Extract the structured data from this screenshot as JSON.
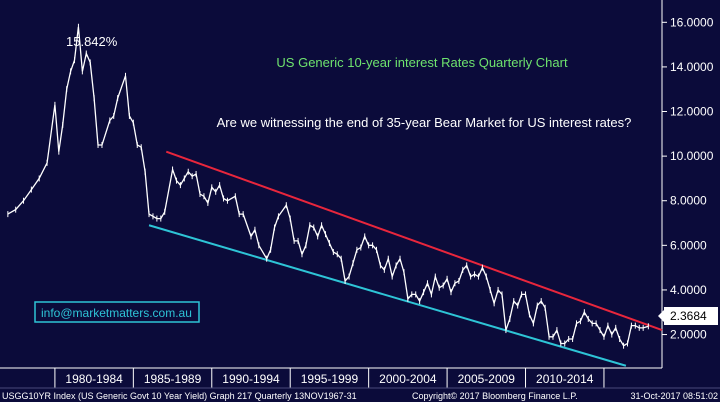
{
  "colors": {
    "background": "#0b0b3a",
    "price_line": "#ffffff",
    "upper_trendline": "#e8263c",
    "lower_trendline": "#2ec4d6",
    "title_text": "#6ee36e",
    "email_box_border": "#2ec4d6",
    "email_text": "#2ec4d6",
    "axis_band": "#0b0b3a",
    "last_value_box": "#ffffff",
    "last_value_text": "#000000"
  },
  "chart_data": {
    "type": "line",
    "title": "US Generic 10-year interest Rates Quarterly Chart",
    "subtitle": "Are we witnessing the end of 35-year Bear Market for US interest rates?",
    "peak_label": "15.842%",
    "email_label": "info@marketmatters.com.au",
    "last_value_label": "2.3684",
    "y_ticks": [
      "16.0000",
      "14.0000",
      "12.0000",
      "10.0000",
      "8.0000",
      "6.0000",
      "4.0000",
      "2.0000"
    ],
    "y_tick_values": [
      16,
      14,
      12,
      10,
      8,
      6,
      4,
      2
    ],
    "x_tick_labels": [
      "1980-1984",
      "1985-1989",
      "1990-1994",
      "1995-1999",
      "2000-2004",
      "2005-2009",
      "2010-2014"
    ],
    "ylim": [
      0.5,
      17.0
    ],
    "xlim": [
      1976.5,
      2018.7
    ],
    "grid": false,
    "series": [
      {
        "values": [
          [
            1977.0,
            7.4
          ],
          [
            1977.5,
            7.6
          ],
          [
            1978.0,
            8.0
          ],
          [
            1978.5,
            8.5
          ],
          [
            1979.0,
            9.0
          ],
          [
            1979.5,
            9.7
          ],
          [
            1980.0,
            12.3
          ],
          [
            1980.25,
            10.2
          ],
          [
            1980.5,
            11.4
          ],
          [
            1980.75,
            13.0
          ],
          [
            1981.0,
            13.8
          ],
          [
            1981.25,
            14.3
          ],
          [
            1981.5,
            15.8
          ],
          [
            1981.75,
            13.8
          ],
          [
            1982.0,
            14.6
          ],
          [
            1982.25,
            14.2
          ],
          [
            1982.5,
            12.6
          ],
          [
            1982.75,
            10.5
          ],
          [
            1983.0,
            10.5
          ],
          [
            1983.5,
            11.6
          ],
          [
            1983.75,
            11.8
          ],
          [
            1984.0,
            12.6
          ],
          [
            1984.5,
            13.6
          ],
          [
            1984.75,
            11.8
          ],
          [
            1985.0,
            11.5
          ],
          [
            1985.25,
            10.5
          ],
          [
            1985.5,
            10.4
          ],
          [
            1985.75,
            9.3
          ],
          [
            1986.0,
            7.4
          ],
          [
            1986.25,
            7.3
          ],
          [
            1986.5,
            7.2
          ],
          [
            1986.75,
            7.2
          ],
          [
            1987.0,
            7.5
          ],
          [
            1987.5,
            9.4
          ],
          [
            1987.75,
            8.9
          ],
          [
            1988.0,
            8.7
          ],
          [
            1988.25,
            9.0
          ],
          [
            1988.5,
            9.3
          ],
          [
            1988.75,
            9.1
          ],
          [
            1989.0,
            9.2
          ],
          [
            1989.25,
            8.3
          ],
          [
            1989.5,
            8.2
          ],
          [
            1989.75,
            7.9
          ],
          [
            1990.0,
            8.6
          ],
          [
            1990.25,
            8.4
          ],
          [
            1990.5,
            8.7
          ],
          [
            1990.75,
            8.1
          ],
          [
            1991.0,
            8.0
          ],
          [
            1991.5,
            8.2
          ],
          [
            1991.75,
            7.4
          ],
          [
            1992.0,
            7.4
          ],
          [
            1992.5,
            6.4
          ],
          [
            1992.75,
            6.7
          ],
          [
            1993.0,
            6.0
          ],
          [
            1993.5,
            5.4
          ],
          [
            1993.75,
            5.8
          ],
          [
            1994.0,
            6.8
          ],
          [
            1994.25,
            7.3
          ],
          [
            1994.75,
            7.8
          ],
          [
            1995.0,
            7.2
          ],
          [
            1995.25,
            6.2
          ],
          [
            1995.5,
            6.2
          ],
          [
            1995.75,
            5.6
          ],
          [
            1996.0,
            6.0
          ],
          [
            1996.25,
            6.9
          ],
          [
            1996.5,
            6.8
          ],
          [
            1996.75,
            6.4
          ],
          [
            1997.0,
            6.9
          ],
          [
            1997.25,
            6.5
          ],
          [
            1997.5,
            6.1
          ],
          [
            1997.75,
            5.7
          ],
          [
            1998.0,
            5.6
          ],
          [
            1998.25,
            5.4
          ],
          [
            1998.5,
            4.4
          ],
          [
            1998.75,
            4.6
          ],
          [
            1999.0,
            5.2
          ],
          [
            1999.25,
            5.8
          ],
          [
            1999.5,
            5.9
          ],
          [
            1999.75,
            6.4
          ],
          [
            2000.0,
            6.0
          ],
          [
            2000.25,
            6.0
          ],
          [
            2000.5,
            5.8
          ],
          [
            2000.75,
            5.1
          ],
          [
            2001.0,
            4.9
          ],
          [
            2001.25,
            5.4
          ],
          [
            2001.5,
            4.6
          ],
          [
            2001.75,
            5.1
          ],
          [
            2002.0,
            5.4
          ],
          [
            2002.25,
            4.8
          ],
          [
            2002.5,
            3.6
          ],
          [
            2002.75,
            3.8
          ],
          [
            2003.0,
            3.8
          ],
          [
            2003.25,
            3.5
          ],
          [
            2003.5,
            3.9
          ],
          [
            2003.75,
            4.3
          ],
          [
            2004.0,
            3.8
          ],
          [
            2004.25,
            4.6
          ],
          [
            2004.5,
            4.1
          ],
          [
            2004.75,
            4.2
          ],
          [
            2005.0,
            4.5
          ],
          [
            2005.25,
            3.9
          ],
          [
            2005.5,
            4.3
          ],
          [
            2005.75,
            4.4
          ],
          [
            2006.0,
            4.9
          ],
          [
            2006.25,
            5.1
          ],
          [
            2006.5,
            4.6
          ],
          [
            2006.75,
            4.7
          ],
          [
            2007.0,
            4.6
          ],
          [
            2007.25,
            5.0
          ],
          [
            2007.5,
            4.6
          ],
          [
            2007.75,
            4.0
          ],
          [
            2008.0,
            3.4
          ],
          [
            2008.25,
            4.0
          ],
          [
            2008.5,
            3.8
          ],
          [
            2008.75,
            2.2
          ],
          [
            2009.0,
            2.7
          ],
          [
            2009.25,
            3.5
          ],
          [
            2009.5,
            3.3
          ],
          [
            2009.75,
            3.8
          ],
          [
            2010.0,
            3.8
          ],
          [
            2010.25,
            2.9
          ],
          [
            2010.5,
            2.5
          ],
          [
            2010.75,
            3.3
          ],
          [
            2011.0,
            3.5
          ],
          [
            2011.25,
            3.2
          ],
          [
            2011.5,
            1.9
          ],
          [
            2011.75,
            1.9
          ],
          [
            2012.0,
            2.2
          ],
          [
            2012.25,
            1.6
          ],
          [
            2012.5,
            1.6
          ],
          [
            2012.75,
            1.8
          ],
          [
            2013.0,
            1.8
          ],
          [
            2013.25,
            2.5
          ],
          [
            2013.5,
            2.6
          ],
          [
            2013.75,
            3.0
          ],
          [
            2014.0,
            2.7
          ],
          [
            2014.25,
            2.5
          ],
          [
            2014.5,
            2.5
          ],
          [
            2014.75,
            2.2
          ],
          [
            2015.0,
            1.9
          ],
          [
            2015.25,
            2.4
          ],
          [
            2015.5,
            2.0
          ],
          [
            2015.75,
            2.3
          ],
          [
            2016.0,
            1.8
          ],
          [
            2016.25,
            1.5
          ],
          [
            2016.5,
            1.6
          ],
          [
            2016.75,
            2.4
          ],
          [
            2017.0,
            2.4
          ],
          [
            2017.25,
            2.3
          ],
          [
            2017.5,
            2.3
          ],
          [
            2017.83,
            2.37
          ]
        ]
      }
    ],
    "upper_trendline": [
      [
        1987.1,
        10.2
      ],
      [
        2018.7,
        2.2
      ]
    ],
    "lower_trendline": [
      [
        1986.0,
        6.9
      ],
      [
        2016.4,
        0.6
      ]
    ]
  },
  "footer": {
    "left": "USGG10YR Index (US Generic Govt 10 Year Yield) Graph 217  Quarterly 13NOV1967-31",
    "middle": "Copyright© 2017 Bloomberg Finance L.P.",
    "right": "31-Oct-2017 08:51:02"
  }
}
